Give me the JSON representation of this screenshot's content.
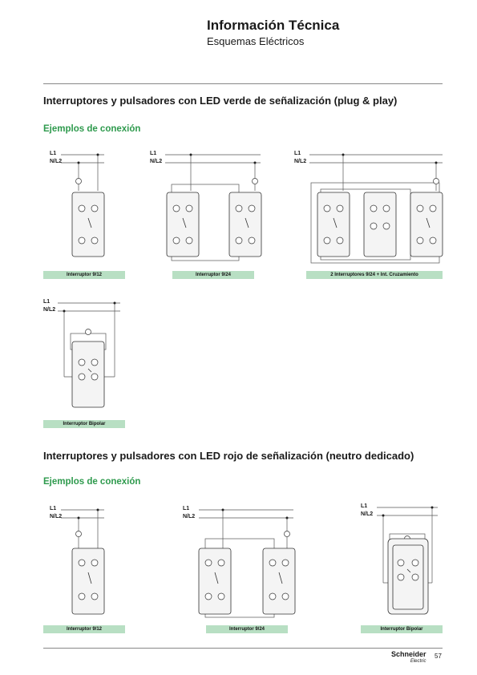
{
  "header": {
    "title": "Información Técnica",
    "subtitle": "Esquemas Eléctricos"
  },
  "section1": {
    "title": "Interruptores y pulsadores con LED verde de señalización (plug & play)",
    "examples_label": "Ejemplos de conexión",
    "captions": [
      "Interruptor 9/12",
      "Interruptor 9/24",
      "2 Interruptores 9/24 + Int. Cruzamiento",
      "Interruptor Bipolar"
    ]
  },
  "section2": {
    "title": "Interruptores y pulsadores con LED rojo de señalización (neutro dedicado)",
    "examples_label": "Ejemplos de conexión",
    "captions": [
      "Interruptor 9/12",
      "Interruptor 9/24",
      "Interruptor Bipolar"
    ]
  },
  "labels": {
    "l1": "L1",
    "nl2": "N/L2"
  },
  "footer": {
    "brand": "Schneider",
    "brand_sub": "Electric",
    "page": "57"
  },
  "colors": {
    "green_heading": "#2e9a4d",
    "caption_bg": "#b8dfc3"
  }
}
